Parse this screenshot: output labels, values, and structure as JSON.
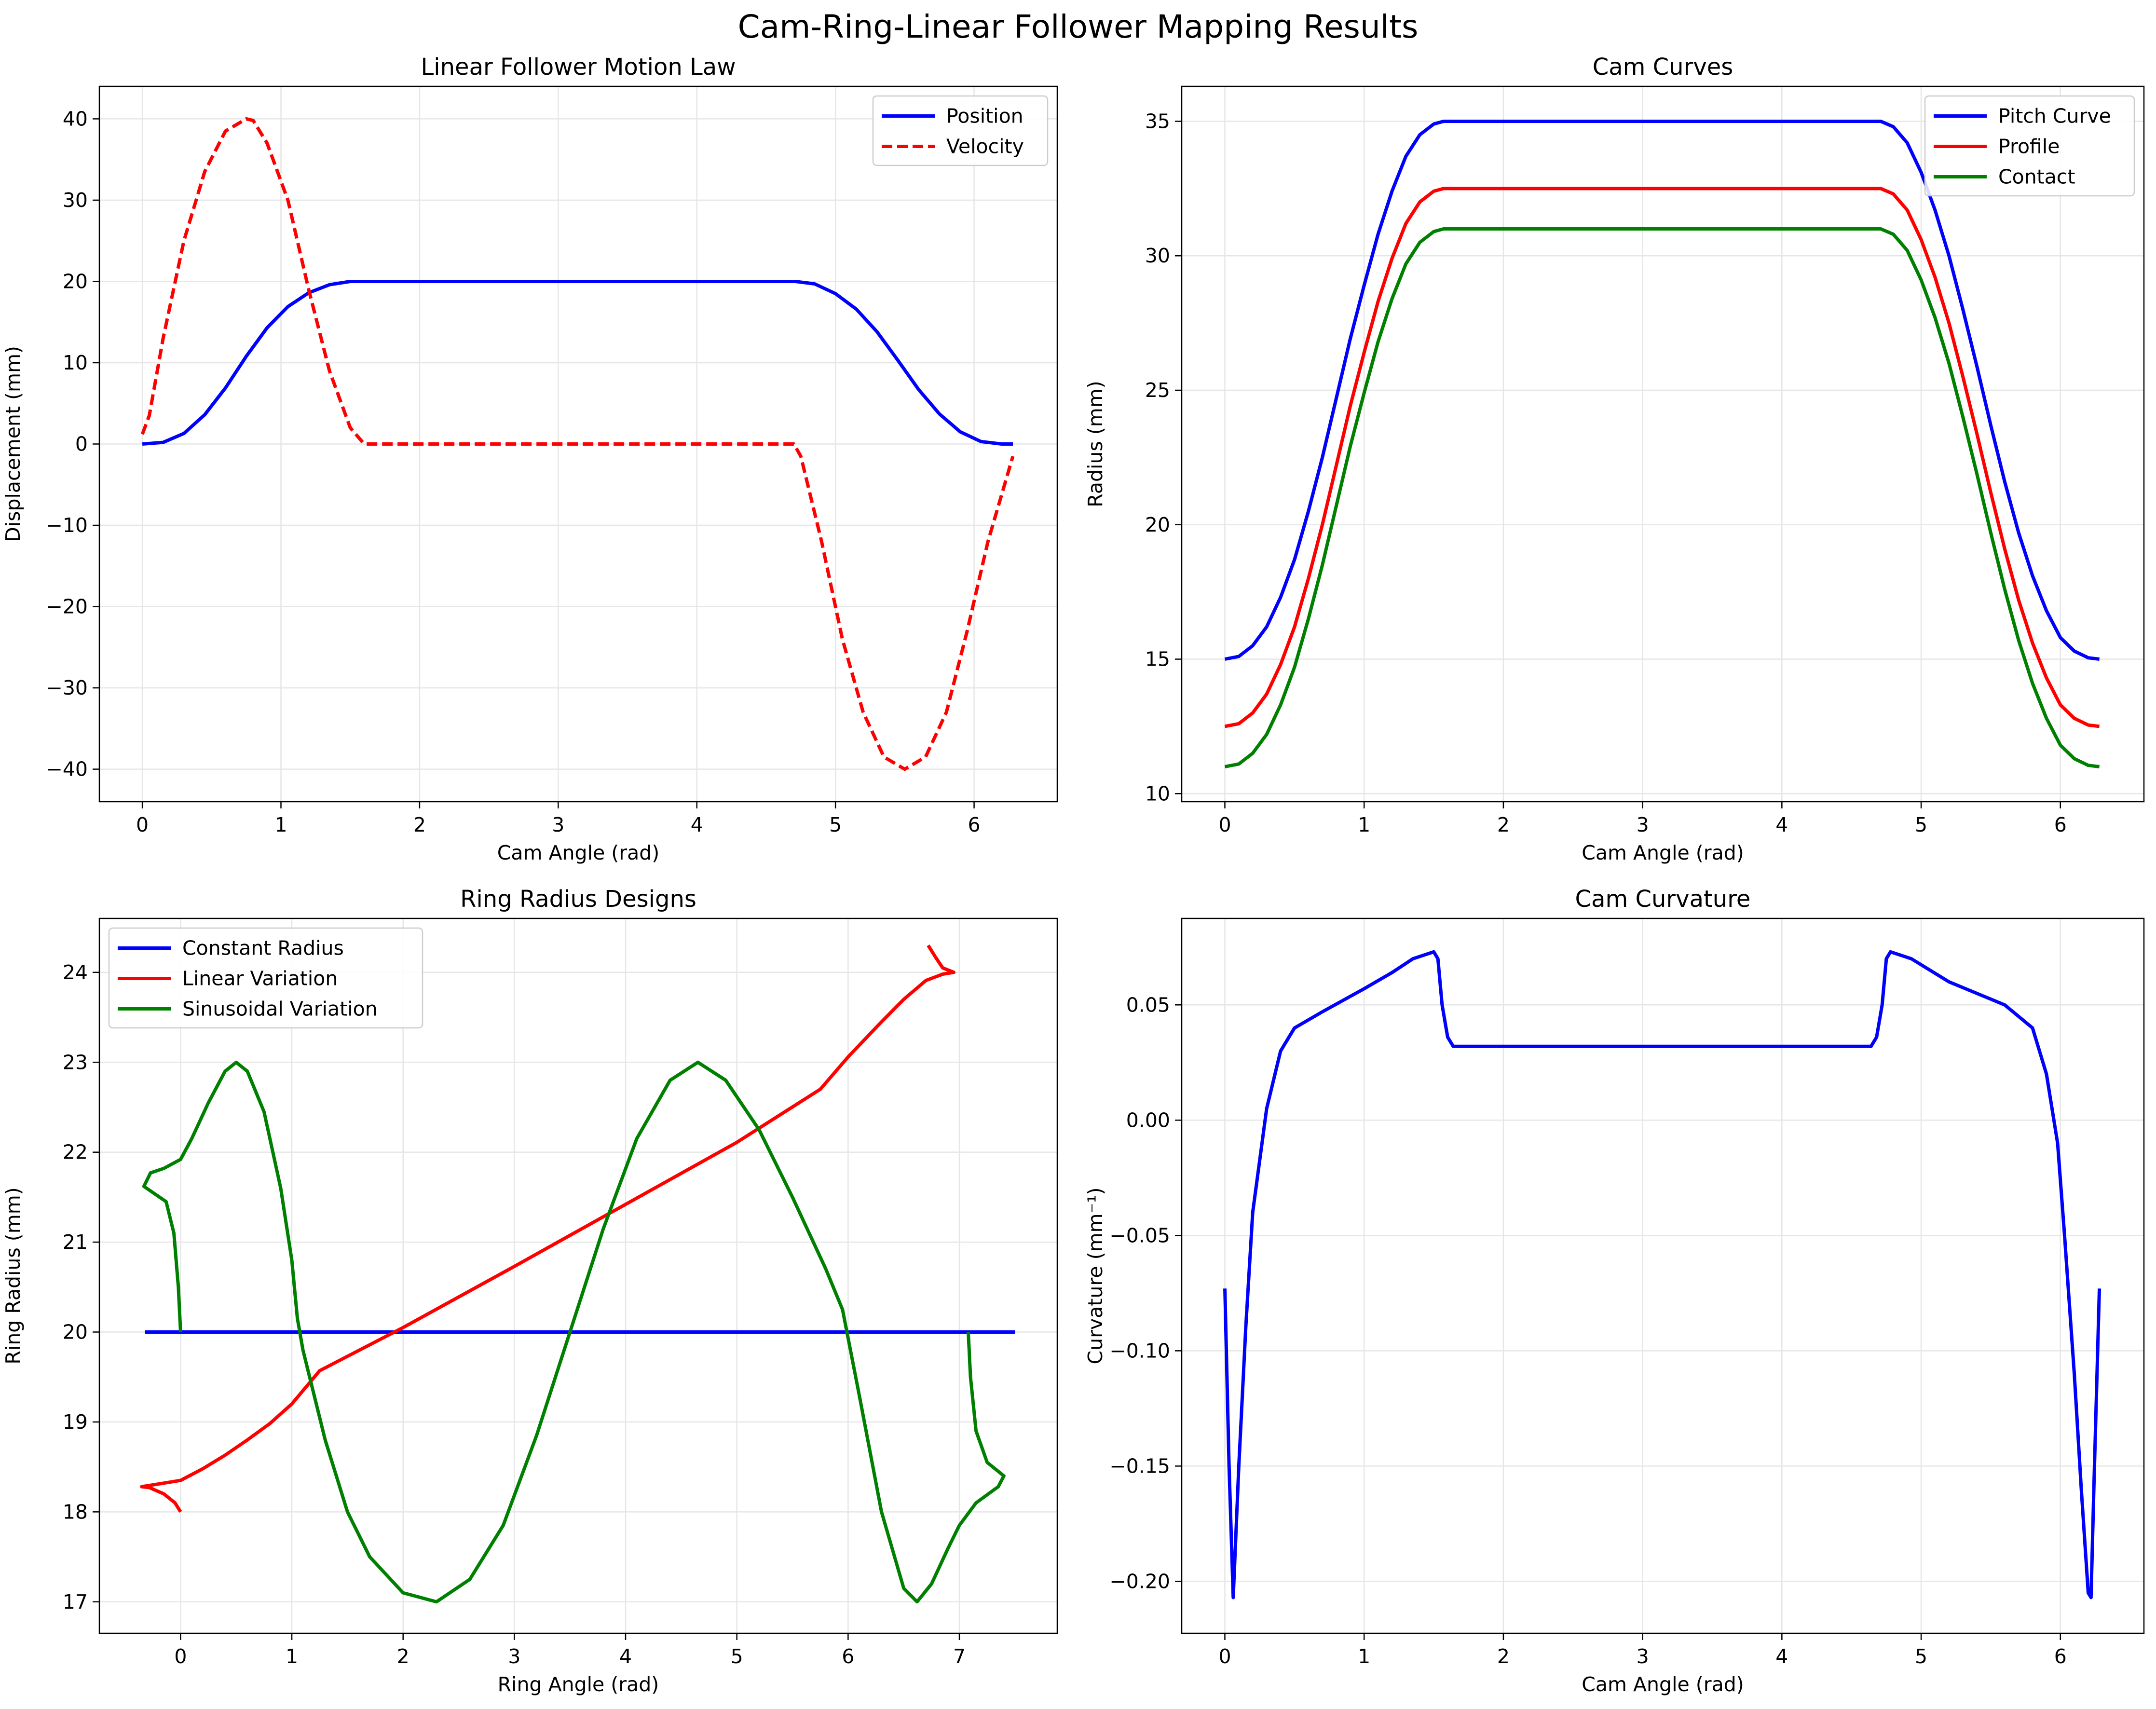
{
  "figure": {
    "title": "Cam-Ring-Linear Follower Mapping Results"
  },
  "chart_data": [
    {
      "type": "line",
      "title": "Linear Follower Motion Law",
      "xlabel": "Cam Angle (rad)",
      "ylabel": "Displacement (mm)",
      "xlim": [
        -0.31,
        6.6
      ],
      "ylim": [
        -44,
        44
      ],
      "xticks": [
        0,
        1,
        2,
        3,
        4,
        5,
        6
      ],
      "yticks": [
        -40,
        -30,
        -20,
        -10,
        0,
        10,
        20,
        30,
        40
      ],
      "grid": true,
      "legend": "top-right",
      "series": [
        {
          "name": "Position",
          "color": "#0000ff",
          "style": "solid",
          "x": [
            0,
            0.15,
            0.3,
            0.45,
            0.6,
            0.75,
            0.9,
            1.05,
            1.2,
            1.35,
            1.5,
            1.57,
            2.5,
            3.5,
            4.71,
            4.85,
            5.0,
            5.15,
            5.3,
            5.45,
            5.6,
            5.75,
            5.9,
            6.05,
            6.2,
            6.28
          ],
          "y": [
            0,
            0.2,
            1.3,
            3.6,
            6.9,
            10.8,
            14.3,
            16.9,
            18.6,
            19.6,
            20.0,
            20.0,
            20.0,
            20.0,
            20.0,
            19.7,
            18.5,
            16.6,
            13.8,
            10.3,
            6.7,
            3.7,
            1.5,
            0.3,
            0.0,
            0.0
          ]
        },
        {
          "name": "Velocity",
          "color": "#ff0000",
          "style": "dashed",
          "x": [
            0,
            0.05,
            0.15,
            0.3,
            0.45,
            0.6,
            0.75,
            0.8,
            0.9,
            1.05,
            1.2,
            1.35,
            1.5,
            1.6,
            2.5,
            3.5,
            4.7,
            4.75,
            4.9,
            5.05,
            5.2,
            5.35,
            5.5,
            5.65,
            5.8,
            5.95,
            6.1,
            6.28
          ],
          "y": [
            1.2,
            3.5,
            13,
            25,
            33.5,
            38.5,
            40,
            39.8,
            37,
            30,
            19,
            9,
            2,
            0,
            0,
            0,
            0,
            -1.5,
            -12,
            -24,
            -33,
            -38.5,
            -40,
            -38.5,
            -33,
            -23,
            -12,
            -1.5
          ]
        }
      ]
    },
    {
      "type": "line",
      "title": "Cam Curves",
      "xlabel": "Cam Angle (rad)",
      "ylabel": "Radius (mm)",
      "xlim": [
        -0.31,
        6.6
      ],
      "ylim": [
        9.7,
        36.3
      ],
      "xticks": [
        0,
        1,
        2,
        3,
        4,
        5,
        6
      ],
      "yticks": [
        10,
        15,
        20,
        25,
        30,
        35
      ],
      "grid": true,
      "legend": "top-right",
      "series": [
        {
          "name": "Pitch Curve",
          "color": "#0000ff",
          "style": "solid",
          "x": [
            0,
            0.1,
            0.2,
            0.3,
            0.4,
            0.5,
            0.6,
            0.7,
            0.8,
            0.9,
            1.0,
            1.1,
            1.2,
            1.3,
            1.4,
            1.5,
            1.57,
            3.0,
            4.71,
            4.8,
            4.9,
            5.0,
            5.1,
            5.2,
            5.3,
            5.4,
            5.5,
            5.6,
            5.7,
            5.8,
            5.9,
            6.0,
            6.1,
            6.2,
            6.28
          ],
          "y": [
            15.0,
            15.1,
            15.5,
            16.2,
            17.3,
            18.7,
            20.5,
            22.5,
            24.7,
            26.9,
            28.9,
            30.8,
            32.4,
            33.7,
            34.5,
            34.9,
            35.0,
            35.0,
            35.0,
            34.8,
            34.2,
            33.1,
            31.7,
            30.0,
            28.0,
            25.9,
            23.7,
            21.6,
            19.7,
            18.1,
            16.8,
            15.8,
            15.3,
            15.05,
            15.0
          ]
        },
        {
          "name": "Profile",
          "color": "#ff0000",
          "style": "solid",
          "x": [
            0,
            0.1,
            0.2,
            0.3,
            0.4,
            0.5,
            0.6,
            0.7,
            0.8,
            0.9,
            1.0,
            1.1,
            1.2,
            1.3,
            1.4,
            1.5,
            1.57,
            3.0,
            4.71,
            4.8,
            4.9,
            5.0,
            5.1,
            5.2,
            5.3,
            5.4,
            5.5,
            5.6,
            5.7,
            5.8,
            5.9,
            6.0,
            6.1,
            6.2,
            6.28
          ],
          "y": [
            12.5,
            12.6,
            13.0,
            13.7,
            14.8,
            16.2,
            18.0,
            20.0,
            22.2,
            24.4,
            26.4,
            28.3,
            29.9,
            31.2,
            32.0,
            32.4,
            32.5,
            32.5,
            32.5,
            32.3,
            31.7,
            30.6,
            29.2,
            27.5,
            25.5,
            23.4,
            21.2,
            19.1,
            17.2,
            15.6,
            14.3,
            13.3,
            12.8,
            12.55,
            12.5
          ]
        },
        {
          "name": "Contact",
          "color": "#008000",
          "style": "solid",
          "x": [
            0,
            0.1,
            0.2,
            0.3,
            0.4,
            0.5,
            0.6,
            0.7,
            0.8,
            0.9,
            1.0,
            1.1,
            1.2,
            1.3,
            1.4,
            1.5,
            1.57,
            3.0,
            4.71,
            4.8,
            4.9,
            5.0,
            5.1,
            5.2,
            5.3,
            5.4,
            5.5,
            5.6,
            5.7,
            5.8,
            5.9,
            6.0,
            6.1,
            6.2,
            6.28
          ],
          "y": [
            11.0,
            11.1,
            11.5,
            12.2,
            13.3,
            14.7,
            16.5,
            18.5,
            20.7,
            22.9,
            24.9,
            26.8,
            28.4,
            29.7,
            30.5,
            30.9,
            31.0,
            31.0,
            31.0,
            30.8,
            30.2,
            29.1,
            27.7,
            26.0,
            24.0,
            21.9,
            19.7,
            17.6,
            15.7,
            14.1,
            12.8,
            11.8,
            11.3,
            11.05,
            11.0
          ]
        }
      ]
    },
    {
      "type": "line",
      "title": "Ring Radius Designs",
      "xlabel": "Ring Angle (rad)",
      "ylabel": "Ring Radius (mm)",
      "xlim": [
        -0.73,
        7.88
      ],
      "ylim": [
        16.65,
        24.6
      ],
      "xticks": [
        0,
        1,
        2,
        3,
        4,
        5,
        6,
        7
      ],
      "yticks": [
        17,
        18,
        19,
        20,
        21,
        22,
        23,
        24
      ],
      "grid": true,
      "legend": "top-left",
      "series": [
        {
          "name": "Constant Radius",
          "color": "#0000ff",
          "style": "solid",
          "x": [
            -0.32,
            7.5
          ],
          "y": [
            20.0,
            20.0
          ]
        },
        {
          "name": "Linear Variation",
          "color": "#ff0000",
          "style": "solid",
          "x": [
            0.0,
            -0.05,
            -0.15,
            -0.28,
            -0.35,
            -0.2,
            0.0,
            0.2,
            0.4,
            0.6,
            0.8,
            1.0,
            1.25,
            1.5,
            2.0,
            3.0,
            4.0,
            5.0,
            5.75,
            6.0,
            6.3,
            6.5,
            6.7,
            6.85,
            6.95,
            6.85,
            6.78,
            6.72
          ],
          "y": [
            18.0,
            18.1,
            18.2,
            18.27,
            18.28,
            18.31,
            18.35,
            18.48,
            18.63,
            18.8,
            18.98,
            19.2,
            19.57,
            19.73,
            20.05,
            20.73,
            21.42,
            22.11,
            22.7,
            23.06,
            23.45,
            23.7,
            23.91,
            23.98,
            24.0,
            24.05,
            24.18,
            24.3
          ]
        },
        {
          "name": "Sinusoidal Variation",
          "color": "#008000",
          "style": "solid",
          "x": [
            0.0,
            -0.02,
            -0.06,
            -0.13,
            -0.33,
            -0.27,
            -0.15,
            0.0,
            0.1,
            0.25,
            0.4,
            0.5,
            0.6,
            0.75,
            0.9,
            1.0,
            1.05,
            1.1,
            1.3,
            1.5,
            1.7,
            2.0,
            2.3,
            2.6,
            2.9,
            3.2,
            3.5,
            3.8,
            4.1,
            4.4,
            4.65,
            4.9,
            5.2,
            5.5,
            5.8,
            5.95,
            6.1,
            6.3,
            6.5,
            6.62,
            6.75,
            6.9,
            7.0,
            7.15,
            7.35,
            7.4,
            7.25,
            7.15,
            7.1,
            7.08
          ],
          "y": [
            20.0,
            20.5,
            21.1,
            21.45,
            21.62,
            21.77,
            21.82,
            21.92,
            22.15,
            22.55,
            22.9,
            23.0,
            22.9,
            22.45,
            21.6,
            20.8,
            20.15,
            19.8,
            18.8,
            18.0,
            17.5,
            17.1,
            17.0,
            17.25,
            17.85,
            18.85,
            20.0,
            21.15,
            22.15,
            22.8,
            23.0,
            22.8,
            22.25,
            21.5,
            20.7,
            20.25,
            19.3,
            18.0,
            17.15,
            17.0,
            17.2,
            17.6,
            17.85,
            18.1,
            18.28,
            18.4,
            18.55,
            18.9,
            19.5,
            20.0
          ]
        }
      ]
    },
    {
      "type": "line",
      "title": "Cam Curvature",
      "xlabel": "Cam Angle (rad)",
      "ylabel": "Curvature (mm⁻¹)",
      "xlim": [
        -0.31,
        6.6
      ],
      "ylim": [
        -0.2225,
        0.0875
      ],
      "xticks": [
        0,
        1,
        2,
        3,
        4,
        5,
        6
      ],
      "yticks": [
        -0.2,
        -0.15,
        -0.1,
        -0.05,
        0.0,
        0.05
      ],
      "ytick_labels": [
        "−0.20",
        "−0.15",
        "−0.10",
        "−0.05",
        "0.00",
        "0.05"
      ],
      "grid": true,
      "series": [
        {
          "name": "",
          "color": "#0000ff",
          "style": "solid",
          "x": [
            0.0,
            0.03,
            0.06,
            0.1,
            0.15,
            0.2,
            0.3,
            0.4,
            0.5,
            0.7,
            1.0,
            1.2,
            1.35,
            1.5,
            1.53,
            1.56,
            1.6,
            1.64,
            4.64,
            4.68,
            4.72,
            4.75,
            4.78,
            4.93,
            5.2,
            5.6,
            5.8,
            5.9,
            5.98,
            6.03,
            6.1,
            6.15,
            6.2,
            6.22,
            6.24,
            6.28
          ],
          "y": [
            -0.073,
            -0.15,
            -0.207,
            -0.15,
            -0.09,
            -0.04,
            0.005,
            0.03,
            0.04,
            0.047,
            0.057,
            0.064,
            0.07,
            0.073,
            0.07,
            0.05,
            0.036,
            0.032,
            0.032,
            0.036,
            0.05,
            0.07,
            0.073,
            0.07,
            0.06,
            0.05,
            0.04,
            0.02,
            -0.01,
            -0.05,
            -0.11,
            -0.16,
            -0.205,
            -0.207,
            -0.16,
            -0.073
          ]
        }
      ]
    }
  ]
}
